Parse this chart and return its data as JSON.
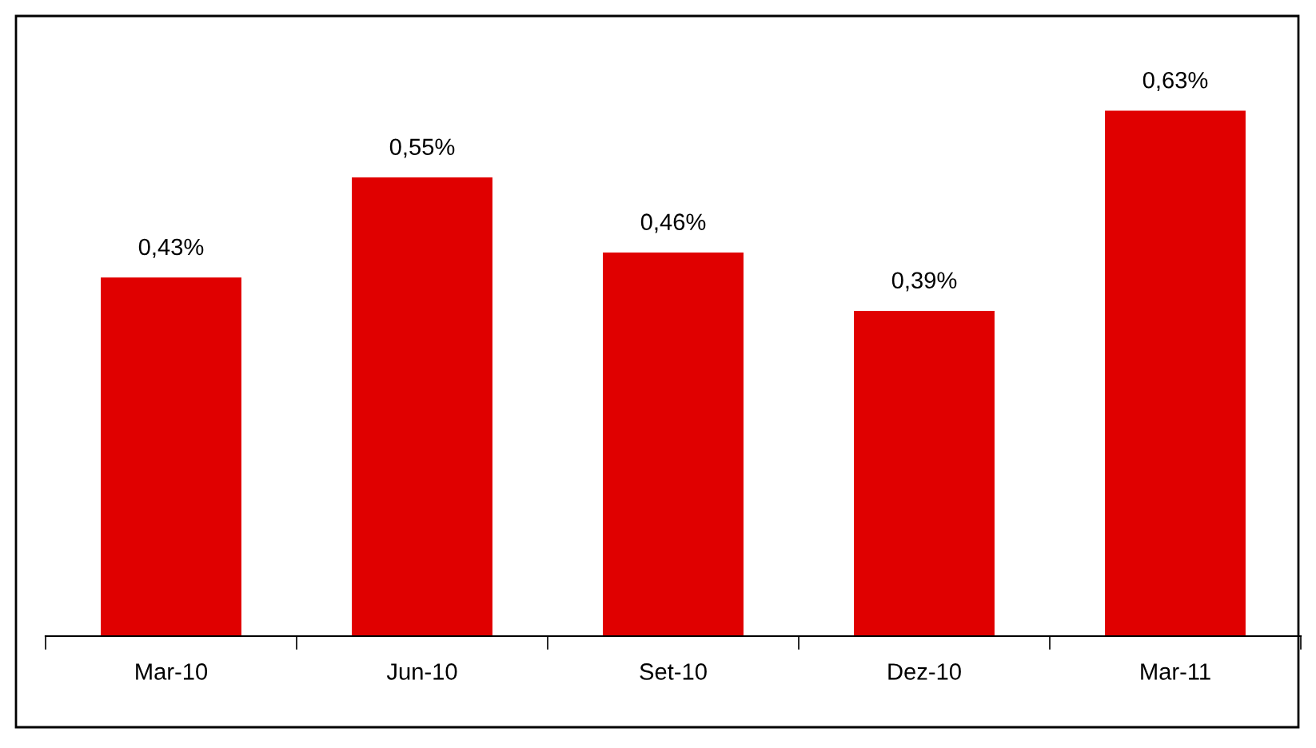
{
  "chart_data": {
    "type": "bar",
    "categories": [
      "Mar-10",
      "Jun-10",
      "Set-10",
      "Dez-10",
      "Mar-11"
    ],
    "values": [
      0.43,
      0.55,
      0.46,
      0.39,
      0.63
    ],
    "value_labels": [
      "0,43%",
      "0,55%",
      "0,46%",
      "0,39%",
      "0,63%"
    ],
    "color": "#e00000",
    "grid": false,
    "legend": false
  }
}
